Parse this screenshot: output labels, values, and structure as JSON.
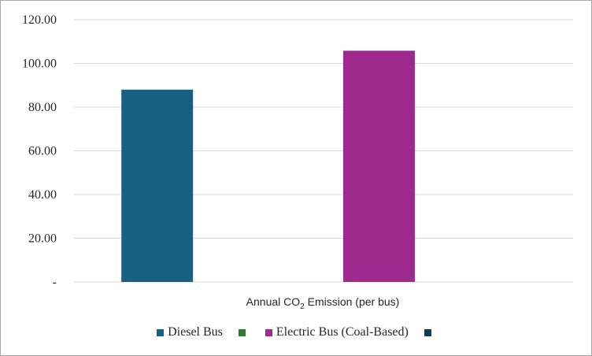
{
  "chart_data": {
    "type": "bar",
    "category_label": {
      "prefix": "Annual CO",
      "subscript": "2",
      "suffix": " Emission (per bus)"
    },
    "series": [
      {
        "name": "Diesel Bus",
        "values": [
          88.0
        ],
        "color": "#17607f"
      },
      {
        "name": "",
        "values": [],
        "color": "#2e7d32"
      },
      {
        "name": "Electric Bus (Coal-Based)",
        "values": [
          105.8
        ],
        "color": "#9e2a8e"
      },
      {
        "name": "",
        "values": [],
        "color": "#0f3b57"
      }
    ],
    "y_ticks": [
      "-",
      "20.00",
      "40.00",
      "60.00",
      "80.00",
      "100.00",
      "120.00"
    ],
    "ylim": [
      0,
      120
    ],
    "grid": true,
    "legend_position": "bottom"
  }
}
